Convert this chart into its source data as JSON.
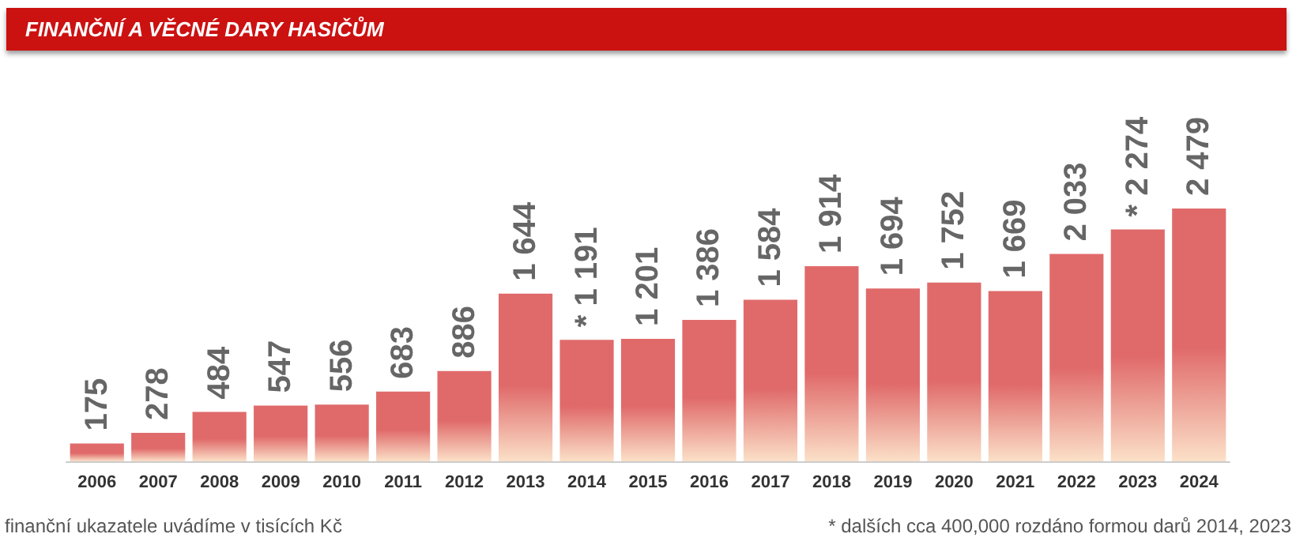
{
  "chart_data": {
    "type": "bar",
    "title": "FINANČNÍ A VĚCNÉ DARY HASIČŮM",
    "categories": [
      "2006",
      "2007",
      "2008",
      "2009",
      "2010",
      "2011",
      "2012",
      "2013",
      "2014",
      "2015",
      "2016",
      "2017",
      "2018",
      "2019",
      "2020",
      "2021",
      "2022",
      "2023",
      "2024"
    ],
    "values": [
      175,
      278,
      484,
      547,
      556,
      683,
      886,
      1644,
      1191,
      1201,
      1386,
      1584,
      1914,
      1694,
      1752,
      1669,
      2033,
      2274,
      2479
    ],
    "value_labels": [
      "175",
      "278",
      "484",
      "547",
      "556",
      "683",
      "886",
      "1 644",
      "* 1 191",
      "1 201",
      "1 386",
      "1 584",
      "1 914",
      "1 694",
      "1 752",
      "1 669",
      "2 033",
      "* 2 274",
      "2 479"
    ],
    "color": "#e06a6a",
    "grid": false,
    "annotations": [
      "finanční ukazatele uvádíme v tisících Kč",
      "* dalších cca 400,000 rozdáno formou darů 2014, 2023"
    ]
  }
}
